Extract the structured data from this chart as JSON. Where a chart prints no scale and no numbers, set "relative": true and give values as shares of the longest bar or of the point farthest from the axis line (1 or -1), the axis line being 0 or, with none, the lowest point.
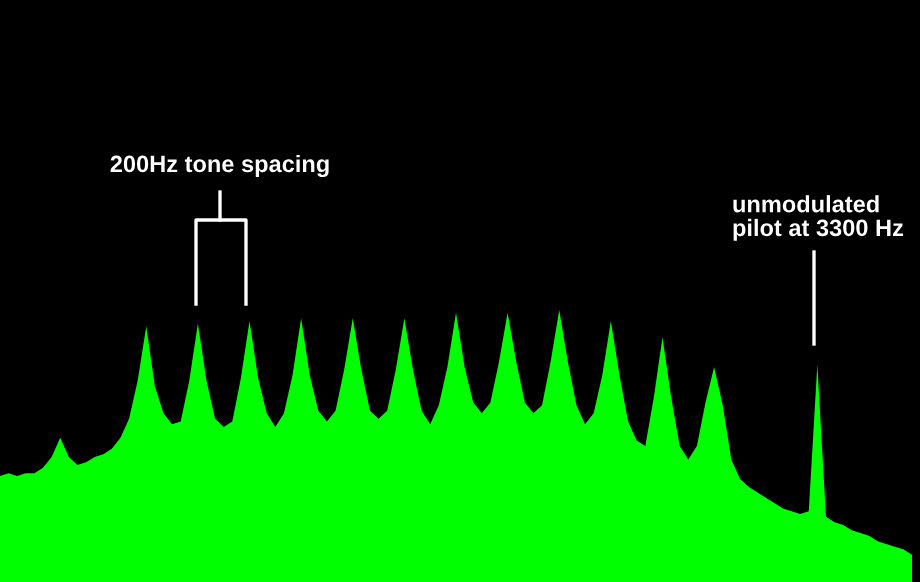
{
  "chart_data": {
    "type": "area",
    "relative": true,
    "color": "#00ff00",
    "categories": [
      null,
      null,
      null,
      null,
      null,
      null,
      null,
      null,
      null,
      null,
      null,
      null,
      null,
      null,
      null,
      null,
      null,
      null,
      null,
      null,
      null,
      null,
      null,
      null,
      null,
      null,
      null,
      null,
      null,
      null,
      null,
      null,
      null,
      null,
      null,
      null,
      null,
      null,
      null,
      null,
      null,
      null,
      null,
      null,
      null,
      null,
      null,
      null,
      null,
      null,
      null,
      null,
      null,
      null,
      null,
      null,
      null,
      null,
      null,
      null,
      null,
      null,
      null,
      null,
      null,
      null,
      null,
      null,
      null,
      null,
      null,
      null,
      null,
      null,
      null,
      null,
      null,
      null,
      null,
      null,
      null,
      null,
      null,
      null,
      null,
      null,
      null,
      null,
      null,
      null,
      null,
      null,
      null,
      null,
      null,
      null,
      null,
      null,
      null,
      null,
      null,
      null,
      null,
      null,
      null,
      null,
      null
    ],
    "values": [
      0.39,
      0.4,
      0.39,
      0.4,
      0.4,
      0.42,
      0.46,
      0.53,
      0.46,
      0.43,
      0.44,
      0.46,
      0.47,
      0.49,
      0.53,
      0.6,
      0.74,
      0.94,
      0.72,
      0.62,
      0.58,
      0.59,
      0.74,
      0.95,
      0.74,
      0.6,
      0.57,
      0.59,
      0.75,
      0.96,
      0.75,
      0.62,
      0.57,
      0.62,
      0.76,
      0.97,
      0.76,
      0.63,
      0.59,
      0.63,
      0.78,
      0.97,
      0.78,
      0.63,
      0.6,
      0.63,
      0.78,
      0.97,
      0.78,
      0.63,
      0.58,
      0.65,
      0.79,
      0.99,
      0.79,
      0.66,
      0.62,
      0.66,
      0.81,
      0.99,
      0.81,
      0.66,
      0.62,
      0.65,
      0.81,
      1,
      0.81,
      0.65,
      0.58,
      0.62,
      0.76,
      0.96,
      0.76,
      0.59,
      0.52,
      0.5,
      0.68,
      0.9,
      0.68,
      0.5,
      0.45,
      0.5,
      0.66,
      0.79,
      0.65,
      0.45,
      0.38,
      0.35,
      0.33,
      0.31,
      0.29,
      0.27,
      0.26,
      0.25,
      0.26,
      0.8,
      0.24,
      0.22,
      0.21,
      0.19,
      0.18,
      0.17,
      0.15,
      0.14,
      0.13,
      0.12,
      0.1
    ],
    "annotations": [
      "200Hz tone spacing",
      "unmodulated\npilot at 3300 Hz"
    ]
  }
}
